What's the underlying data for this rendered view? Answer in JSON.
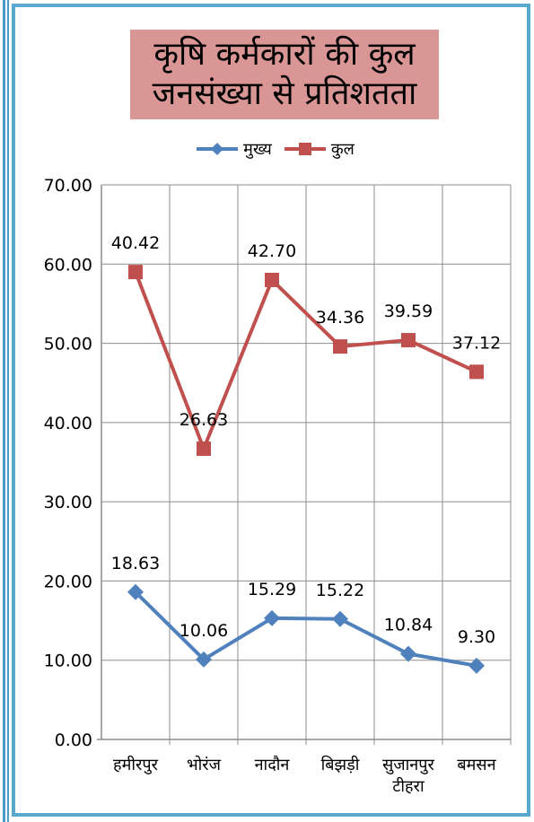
{
  "title_lines": [
    "कृषि कर्मकारों की कुल",
    "जनसंख्या से  प्रतिशतता"
  ],
  "colors": {
    "frame": "#4a9cc7",
    "title_bg": "#d99694",
    "grid": "#808080"
  },
  "chart_data": {
    "type": "line",
    "title": "कृषि कर्मकारों की कुल जनसंख्या से  प्रतिशतता",
    "categories": [
      [
        "हमीरपुर"
      ],
      [
        "भोरंज"
      ],
      [
        "नादौन"
      ],
      [
        "बिझड़ी"
      ],
      [
        "सुजानपुर",
        "टीहरा"
      ],
      [
        "बमसन"
      ]
    ],
    "ylim": [
      0,
      70
    ],
    "yticks": [
      "0.00",
      "10.00",
      "20.00",
      "30.00",
      "40.00",
      "50.00",
      "60.00",
      "70.00"
    ],
    "grid": true,
    "legend_position": "top",
    "series": [
      {
        "name": "मुख्य",
        "color": "#4f81bd",
        "marker": "diamond",
        "values": [
          18.6,
          10.1,
          15.3,
          15.2,
          10.8,
          9.3
        ],
        "labels": [
          "18.63",
          "10.06",
          "15.29",
          "15.22",
          "10.84",
          "9.30"
        ]
      },
      {
        "name": "कुल",
        "color": "#c0504d",
        "marker": "square",
        "values": [
          59.0,
          36.7,
          58.0,
          49.6,
          50.4,
          46.4
        ],
        "labels": [
          "40.42",
          "26.63",
          "42.70",
          "34.36",
          "39.59",
          "37.12"
        ]
      }
    ]
  }
}
